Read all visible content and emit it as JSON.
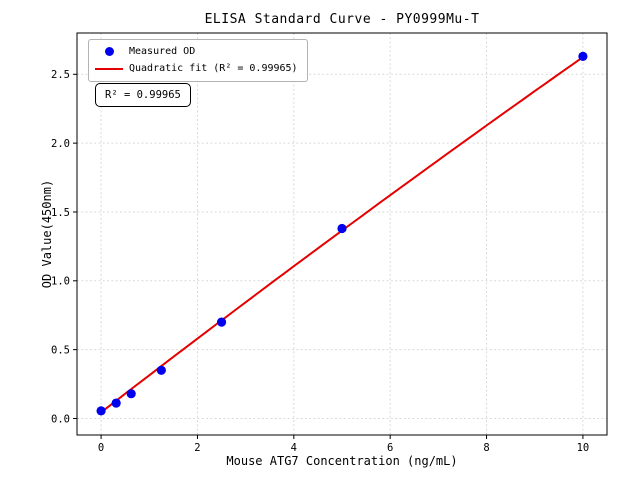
{
  "chart_data": {
    "type": "scatter",
    "title": "ELISA Standard Curve - PY0999Mu-T",
    "xlabel": "Mouse ATG7 Concentration (ng/mL)",
    "ylabel": "OD Value(450nm)",
    "xlim": [
      -0.5,
      10.5
    ],
    "ylim": [
      -0.12,
      2.8
    ],
    "xticks": [
      0,
      2,
      4,
      6,
      8,
      10
    ],
    "yticks": [
      0.0,
      0.5,
      1.0,
      1.5,
      2.0,
      2.5
    ],
    "grid": true,
    "grid_color": "#d9d9d9",
    "spine_color": "#000000",
    "background": "#ffffff",
    "series": [
      {
        "name": "Measured OD",
        "kind": "scatter",
        "color": "#0000ee",
        "points": [
          {
            "x": 0,
            "od": 0.055
          },
          {
            "x": 0.313,
            "od": 0.112
          },
          {
            "x": 0.625,
            "od": 0.18
          },
          {
            "x": 1.25,
            "od": 0.35
          },
          {
            "x": 2.5,
            "od": 0.7
          },
          {
            "x": 5,
            "od": 1.38
          },
          {
            "x": 10,
            "od": 2.63
          }
        ]
      },
      {
        "name": "Quadratic fit (R² = 0.99965)",
        "kind": "line",
        "color": "#e60000",
        "fit": {
          "model": "quadratic",
          "coefficients": [
            0.045,
            0.27,
            -0.0012
          ],
          "domain": [
            0,
            10
          ],
          "r_squared": 0.99965
        }
      }
    ],
    "legend": {
      "position": "upper-left"
    },
    "annotation": {
      "text": "R² = 0.99965"
    }
  }
}
